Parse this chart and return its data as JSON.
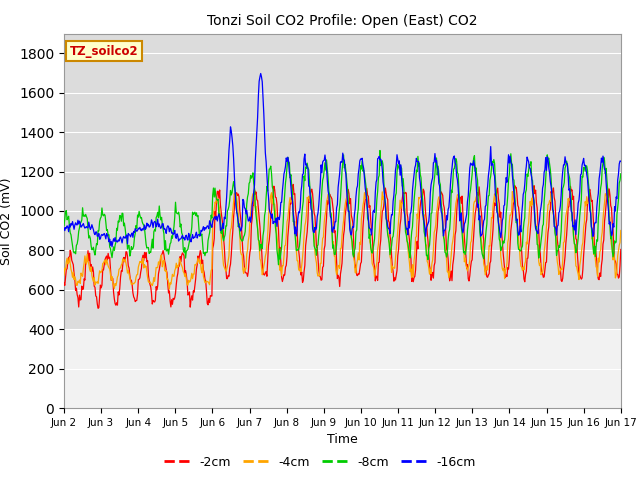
{
  "title": "Tonzi Soil CO2 Profile: Open (East) CO2",
  "ylabel": "Soil CO2 (mV)",
  "xlabel": "Time",
  "legend_label": "TZ_soilco2",
  "ylim": [
    0,
    1900
  ],
  "yticks": [
    0,
    200,
    400,
    600,
    800,
    1000,
    1200,
    1400,
    1600,
    1800
  ],
  "colors": {
    "-2cm": "#ff0000",
    "-4cm": "#ffa500",
    "-8cm": "#00cc00",
    "-16cm": "#0000ff"
  },
  "plot_bg_color": "#dcdcdc",
  "below_data_bg": "#f0f0f0",
  "days": 15,
  "ppd": 48,
  "x_tick_labels": [
    "Jun 2",
    "Jun 3",
    "Jun 4",
    "Jun 5",
    "Jun 6",
    "Jun 7",
    "Jun 8",
    "Jun 9",
    "Jun 10",
    "Jun 11",
    "Jun 12",
    "Jun 13",
    "Jun 14",
    "Jun 15",
    "Jun 16",
    "Jun 17"
  ]
}
